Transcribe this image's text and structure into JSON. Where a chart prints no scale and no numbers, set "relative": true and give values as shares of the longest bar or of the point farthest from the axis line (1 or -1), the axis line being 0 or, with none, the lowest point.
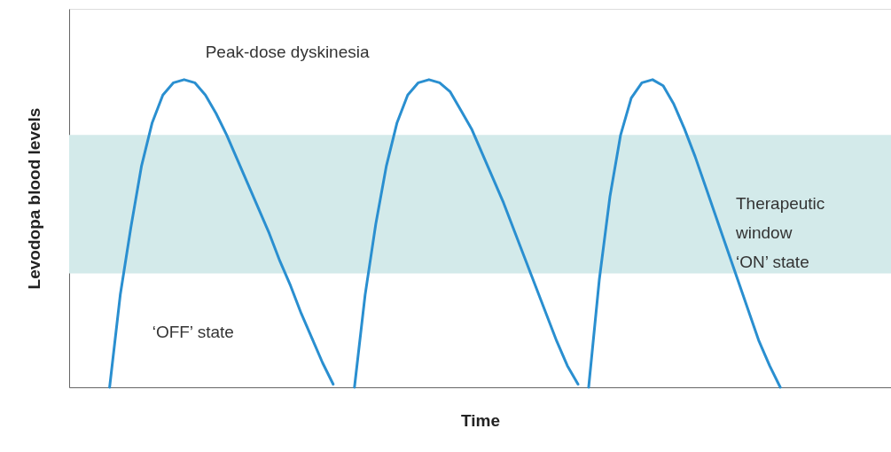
{
  "chart_data": {
    "type": "line",
    "relative": true,
    "xlabel": "Time",
    "ylabel": "Levodopa blood levels",
    "tick_labels": false,
    "grid": false,
    "marker": "none",
    "line_style": "solid",
    "categories": [
      null,
      null,
      null,
      null,
      null,
      null,
      null,
      null,
      null,
      null,
      null,
      null,
      null,
      null,
      null,
      null,
      null,
      null,
      null,
      null,
      null,
      null,
      null,
      null,
      null,
      null,
      null,
      null,
      null,
      null,
      null,
      null,
      null,
      null,
      null,
      null,
      null,
      null,
      null,
      null,
      null,
      null,
      null,
      null,
      null,
      null,
      null,
      null,
      null,
      null,
      null,
      null,
      null,
      null,
      null,
      null,
      null,
      null,
      null,
      null,
      null,
      null,
      null,
      null
    ],
    "series": [
      {
        "color": "#2a8fd0",
        "values": [
          0.0,
          0.3,
          0.52,
          0.72,
          0.86,
          0.95,
          0.99,
          1.0,
          0.99,
          0.95,
          0.89,
          0.82,
          0.74,
          0.66,
          0.58,
          0.5,
          0.41,
          0.33,
          0.24,
          0.16,
          0.08,
          0.01,
          null,
          null,
          null,
          null,
          null,
          null,
          null,
          null,
          null,
          null,
          null,
          null,
          null,
          null,
          null,
          null,
          null,
          null,
          null,
          null,
          null,
          null,
          null,
          null,
          null,
          null,
          null,
          null,
          null,
          null,
          null,
          null,
          null,
          null,
          null,
          null,
          null,
          null,
          null,
          null,
          null,
          null
        ]
      },
      {
        "color": "#2a8fd0",
        "values": [
          null,
          null,
          null,
          null,
          null,
          null,
          null,
          null,
          null,
          null,
          null,
          null,
          null,
          null,
          null,
          null,
          null,
          null,
          null,
          null,
          null,
          null,
          null,
          0.0,
          0.3,
          0.53,
          0.72,
          0.86,
          0.95,
          0.99,
          1.0,
          0.99,
          0.96,
          0.9,
          0.84,
          0.76,
          0.68,
          0.6,
          0.51,
          0.42,
          0.33,
          0.24,
          0.15,
          0.07,
          0.01,
          null,
          null,
          null,
          null,
          null,
          null,
          null,
          null,
          null,
          null,
          null,
          null,
          null,
          null,
          null,
          null,
          null,
          null,
          null
        ]
      },
      {
        "color": "#2a8fd0",
        "values": [
          null,
          null,
          null,
          null,
          null,
          null,
          null,
          null,
          null,
          null,
          null,
          null,
          null,
          null,
          null,
          null,
          null,
          null,
          null,
          null,
          null,
          null,
          null,
          null,
          null,
          null,
          null,
          null,
          null,
          null,
          null,
          null,
          null,
          null,
          null,
          null,
          null,
          null,
          null,
          null,
          null,
          null,
          null,
          null,
          null,
          0.0,
          0.35,
          0.62,
          0.82,
          0.94,
          0.99,
          1.0,
          0.98,
          0.92,
          0.84,
          0.75,
          0.65,
          0.55,
          0.45,
          0.35,
          0.25,
          0.15,
          0.07,
          0.0
        ]
      }
    ],
    "bands": [
      {
        "axis": "y",
        "from": 0.37,
        "to": 0.82,
        "label": "Therapeutic\nwindow\n‘ON’ state",
        "color": "#d3eaea"
      }
    ],
    "annotations": [
      "Peak-dose dyskinesia",
      "‘OFF’ state"
    ]
  }
}
